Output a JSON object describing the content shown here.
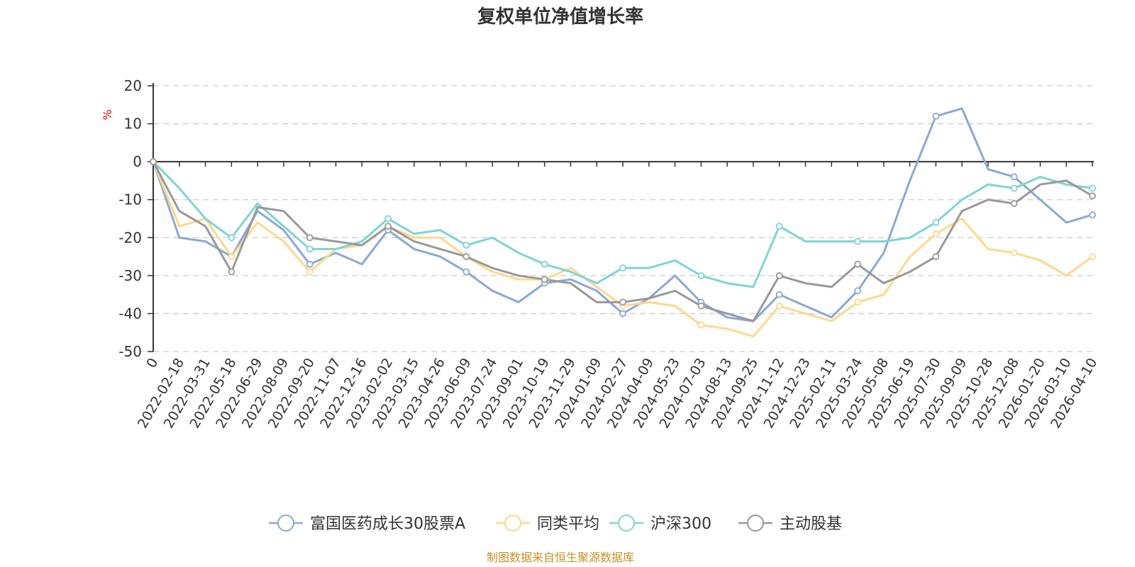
{
  "colors": {
    "axis": "#333333",
    "grid": "#cccccc",
    "unit": "#ff0000",
    "source": "#c8902a"
  },
  "chart_data": {
    "type": "line",
    "title": "复权单位净值增长率",
    "y_unit": "%",
    "ylim": [
      -50,
      20
    ],
    "y_ticks": [
      20,
      10,
      0,
      -10,
      -20,
      -30,
      -40,
      -50
    ],
    "grid": "horizontal dashed",
    "legend_position": "bottom-center",
    "x": [
      "0",
      "2022-02-18",
      "2022-03-31",
      "2022-05-18",
      "2022-06-29",
      "2022-08-09",
      "2022-09-20",
      "2022-11-07",
      "2022-12-16",
      "2023-02-02",
      "2023-03-15",
      "2023-04-26",
      "2023-06-09",
      "2023-07-24",
      "2023-09-01",
      "2023-10-19",
      "2023-11-29",
      "2024-01-09",
      "2024-02-27",
      "2024-04-09",
      "2024-05-23",
      "2024-07-03",
      "2024-08-13",
      "2024-09-25",
      "2024-11-12",
      "2024-12-23",
      "2025-02-11",
      "2025-03-24",
      "2025-05-08",
      "2025-06-19",
      "2025-07-30",
      "2025-09-09",
      "2025-10-28",
      "2025-12-08",
      "2026-01-20",
      "2026-03-10",
      "2026-04-10"
    ],
    "series": [
      {
        "name": "富国医药成长30股票A",
        "color": "#8aa8d8",
        "values": [
          0,
          -20,
          -21,
          -25,
          -13,
          -18,
          -27,
          -24,
          -27,
          -18,
          -23,
          -25,
          -29,
          -34,
          -37,
          -32,
          -31,
          -34,
          -40,
          -36,
          -30,
          -37,
          -41,
          -42,
          -35,
          -38,
          -41,
          -34,
          -24,
          -5,
          12,
          14,
          -2,
          -4,
          -10,
          -16,
          -14
        ]
      },
      {
        "name": "同类平均",
        "color": "#ffd88c",
        "values": [
          0,
          -17,
          -15,
          -25,
          -16,
          -21,
          -29,
          -23,
          -22,
          -17,
          -20,
          -20,
          -25,
          -29,
          -31,
          -31,
          -28,
          -33,
          -38,
          -37,
          -38,
          -43,
          -44,
          -46,
          -38,
          -40,
          -42,
          -37,
          -35,
          -25,
          -19,
          -15,
          -23,
          -24,
          -26,
          -30,
          -25
        ]
      },
      {
        "name": "沪深300",
        "color": "#7fd3d6",
        "values": [
          0,
          -7,
          -15,
          -20,
          -11,
          -17,
          -23,
          -23,
          -21,
          -15,
          -19,
          -18,
          -22,
          -20,
          -24,
          -27,
          -29,
          -32,
          -28,
          -28,
          -26,
          -30,
          -32,
          -33,
          -17,
          -21,
          -21,
          -21,
          -21,
          -20,
          -16,
          -10,
          -6,
          -7,
          -4,
          -6,
          -7
        ]
      },
      {
        "name": "主动股基",
        "color": "#999999",
        "values": [
          0,
          -13,
          -17,
          -29,
          -12,
          -13,
          -20,
          -21,
          -22,
          -17,
          -21,
          -23,
          -25,
          -28,
          -30,
          -31,
          -32,
          -37,
          -37,
          -36,
          -34,
          -38,
          -40,
          -42,
          -30,
          -32,
          -33,
          -27,
          -32,
          -29,
          -25,
          -13,
          -10,
          -11,
          -6,
          -5,
          -9
        ]
      }
    ]
  },
  "source_label": "制图数据来自恒生聚源数据库"
}
